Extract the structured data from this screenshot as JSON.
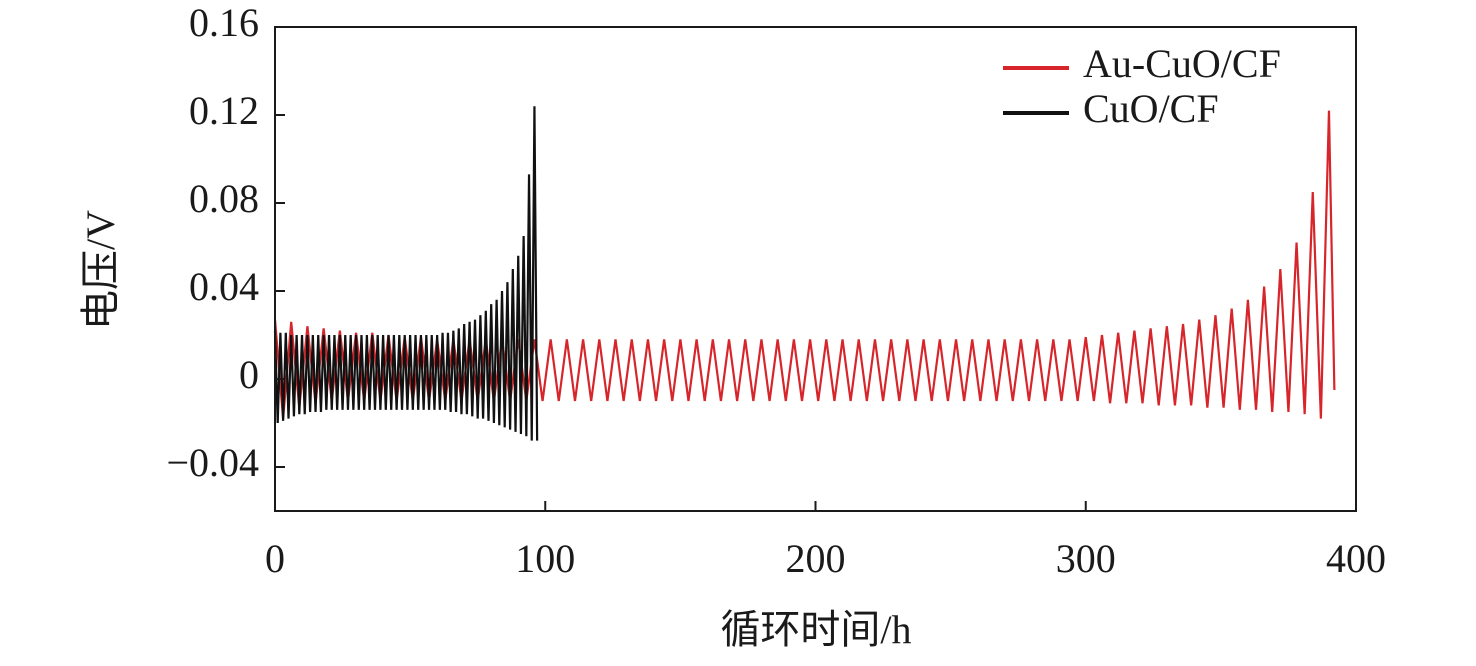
{
  "chart_data": {
    "type": "line",
    "xlabel": "循环时间/h",
    "ylabel": "电压/V",
    "xlim": [
      0,
      400
    ],
    "xticks": [
      0,
      100,
      200,
      300,
      400
    ],
    "ylim": [
      -0.06,
      0.16
    ],
    "yticks": [
      {
        "value": -0.04,
        "label": "−0.04"
      },
      0,
      0.04,
      0.08,
      0.12,
      0.16
    ],
    "legend": "upper right",
    "series": [
      {
        "name": "Au-CuO/CF",
        "color": "#d7262b",
        "x": [
          0,
          3,
          6,
          9,
          12,
          15,
          18,
          21,
          24,
          27,
          30,
          33,
          36,
          39,
          42,
          45,
          48,
          51,
          54,
          57,
          60,
          63,
          66,
          69,
          72,
          75,
          78,
          81,
          84,
          87,
          90,
          93,
          96,
          99,
          102,
          105,
          108,
          111,
          114,
          117,
          120,
          123,
          126,
          129,
          132,
          135,
          138,
          141,
          144,
          147,
          150,
          153,
          156,
          159,
          162,
          165,
          168,
          171,
          174,
          177,
          180,
          183,
          186,
          189,
          192,
          195,
          198,
          201,
          204,
          207,
          210,
          213,
          216,
          219,
          222,
          225,
          228,
          231,
          234,
          237,
          240,
          243,
          246,
          249,
          252,
          255,
          258,
          261,
          264,
          267,
          270,
          273,
          276,
          279,
          282,
          285,
          288,
          291,
          294,
          297,
          300,
          303,
          306,
          309,
          312,
          315,
          318,
          321,
          324,
          327,
          330,
          333,
          336,
          339,
          342,
          345,
          348,
          351,
          354,
          357,
          360,
          363,
          366,
          369,
          372,
          375,
          378,
          381,
          384,
          387,
          390,
          392
        ],
        "values": [
          0.027,
          -0.018,
          0.026,
          -0.013,
          0.024,
          -0.011,
          0.023,
          -0.01,
          0.022,
          -0.01,
          0.021,
          -0.01,
          0.021,
          -0.01,
          0.02,
          -0.01,
          0.019,
          -0.01,
          0.019,
          -0.01,
          0.018,
          -0.01,
          0.018,
          -0.01,
          0.018,
          -0.01,
          0.018,
          -0.01,
          0.018,
          -0.01,
          0.018,
          -0.01,
          0.018,
          -0.01,
          0.018,
          -0.01,
          0.018,
          -0.01,
          0.018,
          -0.01,
          0.018,
          -0.01,
          0.018,
          -0.01,
          0.018,
          -0.01,
          0.018,
          -0.01,
          0.018,
          -0.01,
          0.018,
          -0.01,
          0.018,
          -0.01,
          0.018,
          -0.01,
          0.018,
          -0.01,
          0.018,
          -0.01,
          0.018,
          -0.01,
          0.018,
          -0.01,
          0.018,
          -0.01,
          0.018,
          -0.01,
          0.018,
          -0.01,
          0.018,
          -0.01,
          0.018,
          -0.01,
          0.018,
          -0.01,
          0.018,
          -0.01,
          0.018,
          -0.01,
          0.018,
          -0.01,
          0.018,
          -0.01,
          0.018,
          -0.01,
          0.018,
          -0.01,
          0.018,
          -0.01,
          0.018,
          -0.01,
          0.018,
          -0.01,
          0.018,
          -0.01,
          0.018,
          -0.01,
          0.018,
          -0.01,
          0.019,
          -0.01,
          0.02,
          -0.011,
          0.021,
          -0.011,
          0.022,
          -0.011,
          0.023,
          -0.012,
          0.024,
          -0.012,
          0.025,
          -0.012,
          0.027,
          -0.013,
          0.029,
          -0.013,
          0.032,
          -0.014,
          0.036,
          -0.014,
          0.042,
          -0.015,
          0.05,
          -0.015,
          0.062,
          -0.016,
          0.085,
          -0.018,
          0.122,
          -0.005
        ]
      },
      {
        "name": "CuO/CF",
        "color": "#111111",
        "x": [
          0,
          1,
          2,
          3,
          4,
          5,
          6,
          7,
          8,
          9,
          10,
          11,
          12,
          13,
          14,
          15,
          16,
          17,
          18,
          19,
          20,
          21,
          22,
          23,
          24,
          25,
          26,
          27,
          28,
          29,
          30,
          31,
          32,
          33,
          34,
          35,
          36,
          37,
          38,
          39,
          40,
          41,
          42,
          43,
          44,
          45,
          46,
          47,
          48,
          49,
          50,
          51,
          52,
          53,
          54,
          55,
          56,
          57,
          58,
          59,
          60,
          61,
          62,
          63,
          64,
          65,
          66,
          67,
          68,
          69,
          70,
          71,
          72,
          73,
          74,
          75,
          76,
          77,
          78,
          79,
          80,
          81,
          82,
          83,
          84,
          85,
          86,
          87,
          88,
          89,
          90,
          91,
          92,
          93,
          94,
          95,
          96,
          97
        ],
        "values": [
          0.022,
          -0.02,
          0.021,
          -0.019,
          0.021,
          -0.018,
          0.02,
          -0.017,
          0.02,
          -0.016,
          0.02,
          -0.016,
          0.02,
          -0.015,
          0.02,
          -0.015,
          0.02,
          -0.015,
          0.02,
          -0.014,
          0.02,
          -0.014,
          0.02,
          -0.014,
          0.02,
          -0.014,
          0.02,
          -0.014,
          0.02,
          -0.014,
          0.02,
          -0.014,
          0.02,
          -0.014,
          0.02,
          -0.014,
          0.02,
          -0.014,
          0.02,
          -0.014,
          0.02,
          -0.014,
          0.02,
          -0.014,
          0.02,
          -0.014,
          0.02,
          -0.014,
          0.02,
          -0.014,
          0.02,
          -0.014,
          0.02,
          -0.014,
          0.02,
          -0.014,
          0.02,
          -0.014,
          0.02,
          -0.014,
          0.02,
          -0.014,
          0.021,
          -0.014,
          0.021,
          -0.015,
          0.022,
          -0.015,
          0.023,
          -0.016,
          0.025,
          -0.016,
          0.026,
          -0.017,
          0.027,
          -0.018,
          0.029,
          -0.018,
          0.031,
          -0.019,
          0.034,
          -0.02,
          0.036,
          -0.021,
          0.04,
          -0.022,
          0.044,
          -0.023,
          0.05,
          -0.024,
          0.056,
          -0.025,
          0.065,
          -0.026,
          0.093,
          -0.028,
          0.124,
          -0.028
        ]
      }
    ]
  }
}
